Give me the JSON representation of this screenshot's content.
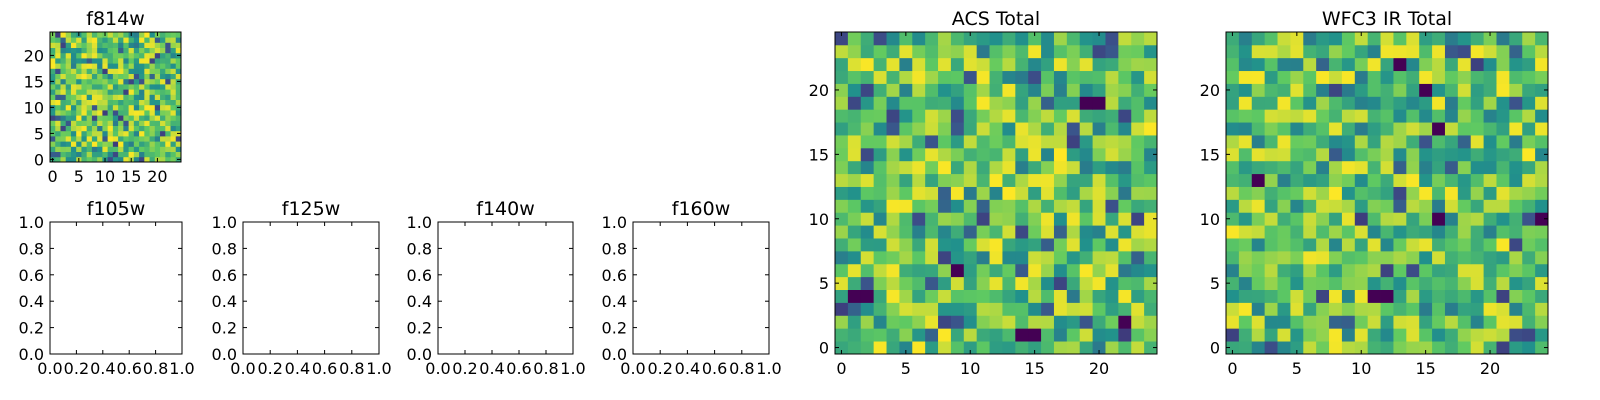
{
  "chart_data": [
    {
      "type": "heatmap",
      "title": "f814w",
      "grid_size": 25,
      "seed": 11,
      "xticks": [
        "0",
        "5",
        "10",
        "15",
        "20"
      ],
      "yticks": [
        "0",
        "5",
        "10",
        "15",
        "20"
      ],
      "xlim": [
        -0.5,
        24.5
      ],
      "ylim": [
        -0.5,
        24.5
      ],
      "xlabel": "",
      "ylabel": ""
    },
    {
      "type": "heatmap",
      "title": "f105w",
      "empty": true,
      "xticks": [
        "0.0",
        "0.2",
        "0.4",
        "0.6",
        "0.8",
        "1.0"
      ],
      "yticks": [
        "0.0",
        "0.2",
        "0.4",
        "0.6",
        "0.8",
        "1.0"
      ],
      "xlim": [
        0,
        1
      ],
      "ylim": [
        0,
        1
      ]
    },
    {
      "type": "heatmap",
      "title": "f125w",
      "empty": true,
      "xticks": [
        "0.0",
        "0.2",
        "0.4",
        "0.6",
        "0.8",
        "1.0"
      ],
      "yticks": [
        "0.0",
        "0.2",
        "0.4",
        "0.6",
        "0.8",
        "1.0"
      ],
      "xlim": [
        0,
        1
      ],
      "ylim": [
        0,
        1
      ]
    },
    {
      "type": "heatmap",
      "title": "f140w",
      "empty": true,
      "xticks": [
        "0.0",
        "0.2",
        "0.4",
        "0.6",
        "0.8",
        "1.0"
      ],
      "yticks": [
        "0.0",
        "0.2",
        "0.4",
        "0.6",
        "0.8",
        "1.0"
      ],
      "xlim": [
        0,
        1
      ],
      "ylim": [
        0,
        1
      ]
    },
    {
      "type": "heatmap",
      "title": "f160w",
      "empty": true,
      "xticks": [
        "0.0",
        "0.2",
        "0.4",
        "0.6",
        "0.8",
        "1.0"
      ],
      "yticks": [
        "0.0",
        "0.2",
        "0.4",
        "0.6",
        "0.8",
        "1.0"
      ],
      "xlim": [
        0,
        1
      ],
      "ylim": [
        0,
        1
      ]
    },
    {
      "type": "heatmap",
      "title": "ACS Total",
      "grid_size": 25,
      "seed": 27,
      "dark_cells": [
        [
          1,
          4
        ],
        [
          2,
          4
        ],
        [
          14,
          1
        ],
        [
          15,
          1
        ],
        [
          22,
          2
        ],
        [
          9,
          6
        ],
        [
          19,
          19
        ],
        [
          20,
          19
        ]
      ],
      "xticks": [
        "0",
        "5",
        "10",
        "15",
        "20"
      ],
      "yticks": [
        "0",
        "5",
        "10",
        "15",
        "20"
      ],
      "xlim": [
        -0.5,
        24.5
      ],
      "ylim": [
        -0.5,
        24.5
      ]
    },
    {
      "type": "heatmap",
      "title": "WFC3 IR Total",
      "grid_size": 25,
      "seed": 43,
      "dark_cells": [
        [
          11,
          4
        ],
        [
          12,
          4
        ],
        [
          16,
          10
        ],
        [
          16,
          17
        ],
        [
          15,
          20
        ],
        [
          13,
          22
        ],
        [
          24,
          10
        ],
        [
          2,
          13
        ]
      ],
      "xticks": [
        "0",
        "5",
        "10",
        "15",
        "20"
      ],
      "yticks": [
        "0",
        "5",
        "10",
        "15",
        "20"
      ],
      "xlim": [
        -0.5,
        24.5
      ],
      "ylim": [
        -0.5,
        24.5
      ]
    }
  ],
  "colormap": {
    "name": "viridis",
    "stops": [
      "#440154",
      "#3b528b",
      "#21918c",
      "#5ec962",
      "#fde725"
    ]
  }
}
